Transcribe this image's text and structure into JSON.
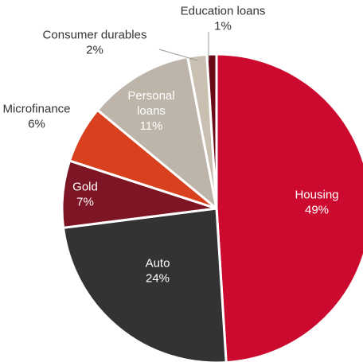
{
  "chart_data": {
    "type": "pie",
    "title": "",
    "legend": "none",
    "slices": [
      {
        "label": "Housing",
        "value": 49,
        "display": "49%",
        "color": "#cc0a2f",
        "label_color": "#ffffff"
      },
      {
        "label": "Auto",
        "value": 24,
        "display": "24%",
        "color": "#333333",
        "label_color": "#ffffff"
      },
      {
        "label": "Gold",
        "value": 7,
        "display": "7%",
        "color": "#7d1524",
        "label_color": "#ffffff"
      },
      {
        "label": "Microfinance",
        "value": 6,
        "display": "6%",
        "color": "#d9401d",
        "label_color": "#333333"
      },
      {
        "label": "Personal loans",
        "value": 11,
        "display": "11%",
        "color": "#bdb5aa",
        "label_color": "#ffffff"
      },
      {
        "label": "Consumer durables",
        "value": 2,
        "display": "2%",
        "color": "#c9c0b2",
        "label_color": "#333333"
      },
      {
        "label": "Education loans",
        "value": 1,
        "display": "1%",
        "color": "#6b0a17",
        "label_color": "#333333"
      }
    ]
  }
}
